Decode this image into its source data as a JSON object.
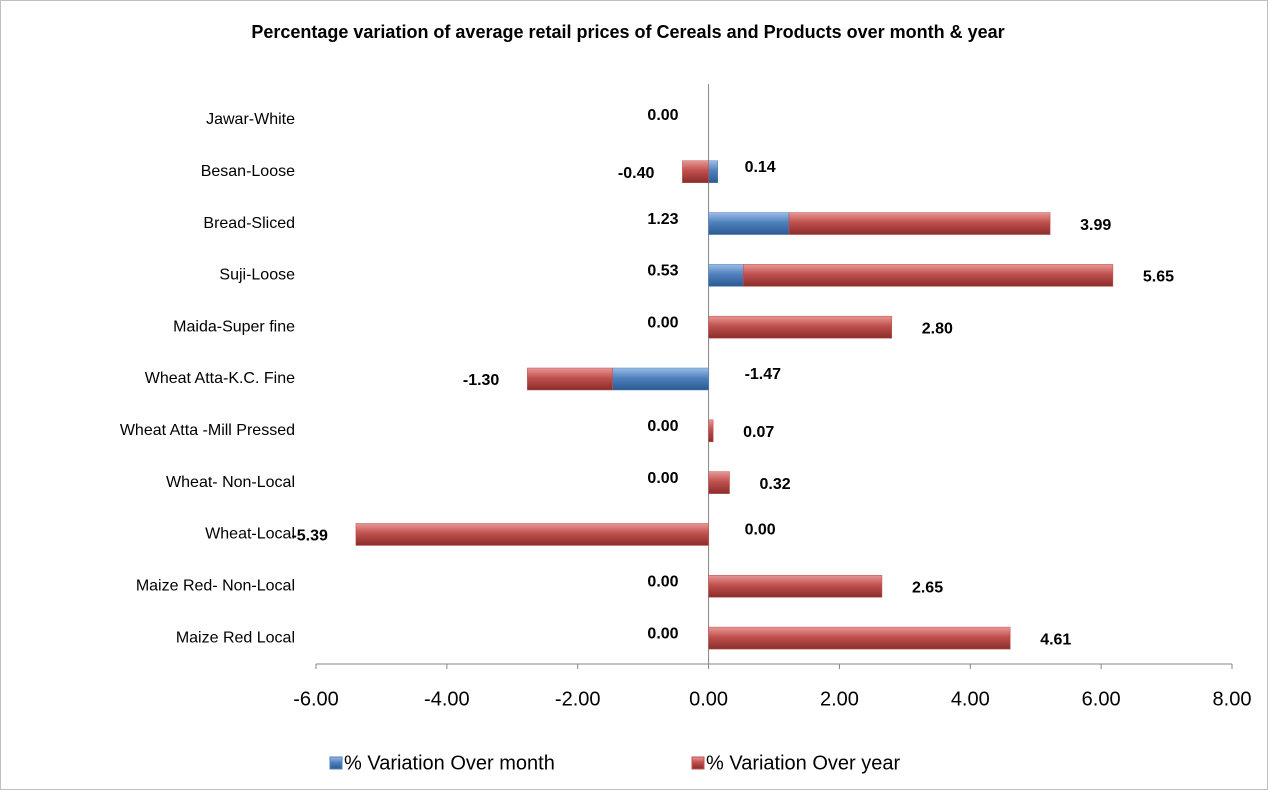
{
  "chart_data": {
    "type": "stacked-barh",
    "title": "Percentage variation of average retail prices of Cereals and Products over month & year",
    "categories": [
      "Jawar-White",
      "Besan-Loose",
      "Bread-Sliced",
      "Suji-Loose",
      "Maida-Super fine",
      "Wheat Atta-K.C. Fine",
      "Wheat Atta -Mill Pressed",
      "Wheat- Non-Local",
      "Wheat-Local",
      "Maize Red- Non-Local",
      "Maize Red Local"
    ],
    "series": [
      {
        "name": "% Variation Over month",
        "color": "#4f81bd",
        "values": [
          0,
          0.14,
          1.23,
          0.53,
          0,
          -1.47,
          0,
          0,
          0,
          0,
          0
        ],
        "value_labels": [
          "0.00",
          "0.14",
          "1.23",
          "0.53",
          "0.00",
          "-1.47",
          "0.00",
          "0.00",
          "0.00",
          "0.00",
          "0.00"
        ]
      },
      {
        "name": "% Variation Over year",
        "color": "#c0504d",
        "values": [
          0,
          -0.4,
          3.99,
          5.65,
          2.8,
          -1.3,
          0.07,
          0.32,
          -5.39,
          2.65,
          4.61
        ],
        "value_labels": [
          null,
          "-0.40",
          "3.99",
          "5.65",
          "2.80",
          "-1.30",
          "0.07",
          "0.32",
          "-5.39",
          "2.65",
          "4.61"
        ]
      }
    ],
    "xlim": [
      -6,
      8
    ],
    "xticks": [
      {
        "value": -6,
        "label": "-6.00"
      },
      {
        "value": -4,
        "label": "-4.00"
      },
      {
        "value": -2,
        "label": "-2.00"
      },
      {
        "value": 0,
        "label": "0.00"
      },
      {
        "value": 2,
        "label": "2.00"
      },
      {
        "value": 4,
        "label": "4.00"
      },
      {
        "value": 6,
        "label": "6.00"
      },
      {
        "value": 8,
        "label": "8.00"
      }
    ],
    "legend": "bottom"
  }
}
